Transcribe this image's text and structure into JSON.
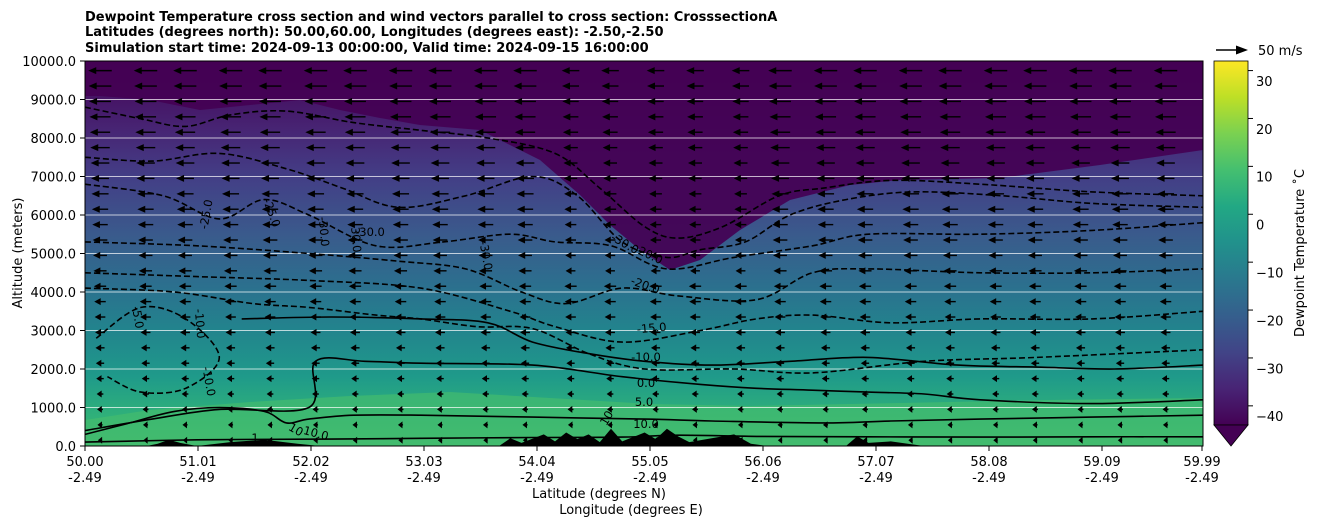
{
  "chart_data": {
    "type": "heatmap",
    "title": [
      "Dewpoint Temperature cross section and wind vectors parallel to cross section: CrosssectionA",
      "Latitudes (degrees north): 50.00,60.00, Longitudes (degrees east): -2.50,-2.50",
      "Simulation start time: 2024-09-13 00:00:00, Valid time: 2024-09-15 16:00:00"
    ],
    "xlabel": "Latitude (degrees N)",
    "xlabel2": "Longitude (degrees E)",
    "ylabel": "Altitude (meters)",
    "x_ticks_lat": [
      "50.00",
      "51.01",
      "52.02",
      "53.03",
      "54.04",
      "55.05",
      "56.06",
      "57.07",
      "58.08",
      "59.09",
      "59.99"
    ],
    "x_ticks_lon": [
      "-2.49",
      "-2.49",
      "-2.49",
      "-2.49",
      "-2.49",
      "-2.49",
      "-2.49",
      "-2.49",
      "-2.49",
      "-2.49",
      "-2.49"
    ],
    "xlim": [
      50.0,
      59.99
    ],
    "y_ticks": [
      "0.0",
      "1000.0",
      "2000.0",
      "3000.0",
      "4000.0",
      "5000.0",
      "6000.0",
      "7000.0",
      "8000.0",
      "9000.0",
      "10000.0"
    ],
    "ylim": [
      0,
      10000
    ],
    "grid": "horizontal",
    "colorbar": {
      "label": "Dewpoint Temperature ˚C",
      "ticks": [
        "−40",
        "−30",
        "−20",
        "−10",
        "0",
        "10",
        "20",
        "30"
      ],
      "range": [
        -44,
        32
      ],
      "extend": "min",
      "colormap": "viridis"
    },
    "quiver_key": {
      "label": "50 m/s"
    },
    "contour_labels": [
      "-5.0",
      "-10.0",
      "-10.0",
      "-25.0",
      "-25.0",
      "-30.0",
      "-30.0",
      "-30.0",
      "-30.0",
      "-30.0",
      "-20.0",
      "-20.0",
      "-15.0",
      "-10.0",
      "0.0",
      "5.0",
      "10.0",
      "10.0",
      "10",
      "10",
      "1"
    ],
    "contours": [
      {
        "level": 10,
        "style": "solid",
        "points": [
          [
            50.0,
            100
          ],
          [
            51.0,
            160
          ],
          [
            52.2,
            180
          ],
          [
            53.0,
            200
          ],
          [
            54.0,
            220
          ],
          [
            54.8,
            230
          ],
          [
            55.3,
            280
          ],
          [
            56.0,
            250
          ],
          [
            57.0,
            240
          ],
          [
            58.0,
            230
          ],
          [
            59.0,
            240
          ],
          [
            59.99,
            240
          ]
        ]
      },
      {
        "level": 5,
        "style": "solid",
        "points": [
          [
            50.0,
            300
          ],
          [
            50.4,
            600
          ],
          [
            50.8,
            900
          ],
          [
            51.2,
            1000
          ],
          [
            51.6,
            900
          ],
          [
            51.8,
            600
          ],
          [
            52.0,
            700
          ],
          [
            52.4,
            800
          ],
          [
            53.0,
            800
          ],
          [
            54.0,
            750
          ],
          [
            55.0,
            700
          ],
          [
            55.6,
            650
          ],
          [
            56.6,
            600
          ],
          [
            57.2,
            650
          ],
          [
            58.0,
            700
          ],
          [
            59.0,
            750
          ],
          [
            59.99,
            800
          ]
        ]
      },
      {
        "level": 0,
        "style": "solid",
        "points": [
          [
            50.0,
            400
          ],
          [
            50.6,
            700
          ],
          [
            51.2,
            950
          ],
          [
            52.0,
            1000
          ],
          [
            52.06,
            2200
          ],
          [
            52.5,
            2200
          ],
          [
            53.0,
            2150
          ],
          [
            54.0,
            2100
          ],
          [
            54.8,
            1800
          ],
          [
            55.5,
            1600
          ],
          [
            56.0,
            1500
          ],
          [
            56.5,
            1450
          ],
          [
            57.0,
            1400
          ],
          [
            57.5,
            1350
          ],
          [
            58.0,
            1200
          ],
          [
            59.0,
            1100
          ],
          [
            59.99,
            1200
          ]
        ]
      },
      {
        "level": 0,
        "style": "solid",
        "points": [
          [
            51.4,
            3300
          ],
          [
            52.2,
            3350
          ],
          [
            53.0,
            3300
          ],
          [
            53.6,
            3200
          ],
          [
            54.0,
            2700
          ],
          [
            54.5,
            2400
          ],
          [
            55.0,
            2200
          ],
          [
            55.6,
            2100
          ],
          [
            56.3,
            2200
          ],
          [
            57.0,
            2300
          ],
          [
            57.8,
            2100
          ],
          [
            58.5,
            2050
          ],
          [
            59.2,
            2000
          ],
          [
            59.99,
            2100
          ]
        ]
      },
      {
        "level": -5,
        "style": "dashed",
        "points": [
          [
            50.1,
            2800
          ],
          [
            50.5,
            3600
          ],
          [
            50.9,
            3300
          ],
          [
            51.2,
            2300
          ],
          [
            50.9,
            1500
          ],
          [
            50.5,
            1400
          ],
          [
            50.2,
            1800
          ]
        ]
      },
      {
        "level": -10,
        "style": "dashed",
        "points": [
          [
            50.0,
            4100
          ],
          [
            50.8,
            4000
          ],
          [
            51.5,
            3700
          ],
          [
            52.0,
            3600
          ],
          [
            52.6,
            3400
          ],
          [
            53.0,
            3300
          ],
          [
            53.5,
            3100
          ],
          [
            54.0,
            3050
          ],
          [
            54.5,
            2400
          ],
          [
            55.0,
            2000
          ],
          [
            55.8,
            2000
          ],
          [
            56.5,
            1900
          ],
          [
            57.5,
            2200
          ],
          [
            58.5,
            2300
          ],
          [
            59.99,
            2500
          ]
        ]
      },
      {
        "level": -15,
        "style": "dashed",
        "points": [
          [
            50.0,
            4500
          ],
          [
            51.0,
            4400
          ],
          [
            52.0,
            4300
          ],
          [
            53.0,
            4100
          ],
          [
            53.8,
            3500
          ],
          [
            54.2,
            3100
          ],
          [
            54.8,
            2700
          ],
          [
            55.5,
            3000
          ],
          [
            56.0,
            3300
          ],
          [
            56.5,
            3400
          ],
          [
            57.2,
            3200
          ],
          [
            58.0,
            3300
          ],
          [
            59.0,
            3300
          ],
          [
            59.99,
            3500
          ]
        ]
      },
      {
        "level": -20,
        "style": "dashed",
        "points": [
          [
            50.0,
            5300
          ],
          [
            51.0,
            5200
          ],
          [
            52.0,
            5000
          ],
          [
            52.8,
            4800
          ],
          [
            53.4,
            4600
          ],
          [
            53.9,
            4000
          ],
          [
            54.3,
            3700
          ],
          [
            54.8,
            4100
          ],
          [
            55.3,
            3900
          ],
          [
            56.0,
            3800
          ],
          [
            56.5,
            4500
          ],
          [
            57.0,
            4600
          ],
          [
            58.0,
            4500
          ],
          [
            59.0,
            4500
          ],
          [
            59.99,
            4600
          ]
        ]
      },
      {
        "level": -25,
        "style": "dashed",
        "points": [
          [
            50.0,
            6800
          ],
          [
            50.7,
            6500
          ],
          [
            51.2,
            5900
          ],
          [
            51.6,
            6400
          ],
          [
            52.0,
            6000
          ],
          [
            52.6,
            5200
          ],
          [
            53.2,
            5300
          ],
          [
            53.8,
            5500
          ],
          [
            54.2,
            5300
          ],
          [
            54.7,
            5200
          ],
          [
            55.2,
            4600
          ],
          [
            55.8,
            4900
          ],
          [
            56.5,
            5200
          ],
          [
            57.0,
            5500
          ],
          [
            58.0,
            5500
          ],
          [
            59.0,
            5600
          ],
          [
            59.99,
            5800
          ]
        ]
      },
      {
        "level": -30,
        "style": "dashed",
        "points": [
          [
            50.0,
            7500
          ],
          [
            50.6,
            7400
          ],
          [
            51.2,
            7600
          ],
          [
            51.8,
            7200
          ],
          [
            52.3,
            6700
          ],
          [
            52.8,
            6200
          ],
          [
            53.4,
            6500
          ],
          [
            54.0,
            7000
          ],
          [
            54.4,
            6500
          ],
          [
            54.8,
            5300
          ],
          [
            55.2,
            4900
          ],
          [
            55.5,
            5100
          ],
          [
            55.9,
            5300
          ],
          [
            56.3,
            6000
          ],
          [
            56.8,
            6400
          ],
          [
            57.4,
            6600
          ],
          [
            58.2,
            6500
          ],
          [
            59.0,
            6300
          ],
          [
            59.99,
            6200
          ]
        ]
      },
      {
        "level": -30,
        "style": "dashed",
        "points": [
          [
            50.0,
            8800
          ],
          [
            50.5,
            8500
          ],
          [
            50.9,
            8300
          ],
          [
            51.3,
            8600
          ],
          [
            51.8,
            8700
          ],
          [
            52.4,
            8400
          ],
          [
            53.0,
            8200
          ],
          [
            53.6,
            8000
          ],
          [
            54.2,
            7600
          ],
          [
            54.6,
            6700
          ],
          [
            55.0,
            5700
          ],
          [
            55.3,
            5400
          ],
          [
            55.7,
            5700
          ],
          [
            56.2,
            6500
          ],
          [
            56.6,
            6700
          ],
          [
            57.2,
            6900
          ],
          [
            58.0,
            6800
          ],
          [
            59.0,
            6600
          ],
          [
            59.99,
            6500
          ]
        ]
      }
    ],
    "terrain": [
      [
        50.0,
        0
      ],
      [
        50.55,
        0
      ],
      [
        50.65,
        60
      ],
      [
        50.75,
        160
      ],
      [
        50.85,
        80
      ],
      [
        51.0,
        0
      ],
      [
        51.3,
        100
      ],
      [
        51.6,
        160
      ],
      [
        51.9,
        60
      ],
      [
        52.1,
        0
      ],
      [
        53.7,
        0
      ],
      [
        53.8,
        200
      ],
      [
        53.9,
        80
      ],
      [
        54.1,
        300
      ],
      [
        54.2,
        120
      ],
      [
        54.3,
        350
      ],
      [
        54.4,
        180
      ],
      [
        54.5,
        300
      ],
      [
        54.6,
        100
      ],
      [
        54.7,
        450
      ],
      [
        54.8,
        120
      ],
      [
        55.0,
        350
      ],
      [
        55.1,
        180
      ],
      [
        55.2,
        450
      ],
      [
        55.3,
        250
      ],
      [
        55.4,
        100
      ],
      [
        55.6,
        200
      ],
      [
        55.8,
        300
      ],
      [
        55.95,
        60
      ],
      [
        56.1,
        0
      ],
      [
        56.8,
        0
      ],
      [
        56.9,
        250
      ],
      [
        57.0,
        80
      ],
      [
        57.2,
        120
      ],
      [
        57.4,
        40
      ],
      [
        57.5,
        0
      ],
      [
        59.99,
        0
      ]
    ]
  }
}
